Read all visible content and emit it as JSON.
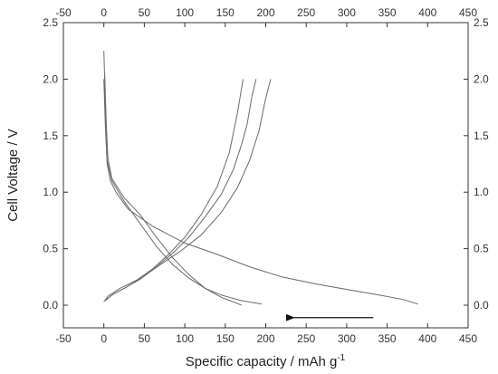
{
  "chart_data": {
    "type": "line",
    "xlabel": "Specific capacity / mAh g",
    "xlabel_superscript": "-1",
    "ylabel": "Cell Voltage / V",
    "xlim": [
      -50,
      450
    ],
    "ylim": [
      -0.2,
      2.5
    ],
    "x_ticks": [
      -50,
      0,
      50,
      100,
      150,
      200,
      250,
      300,
      350,
      400,
      450
    ],
    "y_ticks": [
      0.0,
      0.5,
      1.0,
      1.5,
      2.0,
      2.5
    ],
    "grid": false,
    "legend": "none",
    "series": [
      {
        "values": [
          [
            0,
            2.25
          ],
          [
            1,
            2.0
          ],
          [
            2,
            1.6
          ],
          [
            4,
            1.25
          ],
          [
            8,
            1.1
          ],
          [
            15,
            1.0
          ],
          [
            30,
            0.85
          ],
          [
            60,
            0.7
          ],
          [
            100,
            0.55
          ],
          [
            140,
            0.45
          ],
          [
            180,
            0.34
          ],
          [
            220,
            0.25
          ],
          [
            260,
            0.19
          ],
          [
            300,
            0.14
          ],
          [
            340,
            0.09
          ],
          [
            370,
            0.05
          ],
          [
            388,
            0.01
          ]
        ]
      },
      {
        "values": [
          [
            0,
            0.03
          ],
          [
            5,
            0.08
          ],
          [
            20,
            0.15
          ],
          [
            40,
            0.22
          ],
          [
            60,
            0.32
          ],
          [
            80,
            0.45
          ],
          [
            100,
            0.6
          ],
          [
            120,
            0.8
          ],
          [
            140,
            1.05
          ],
          [
            155,
            1.35
          ],
          [
            165,
            1.7
          ],
          [
            172,
            2.0
          ]
        ]
      },
      {
        "values": [
          [
            2,
            0.04
          ],
          [
            10,
            0.09
          ],
          [
            25,
            0.15
          ],
          [
            45,
            0.23
          ],
          [
            65,
            0.34
          ],
          [
            85,
            0.46
          ],
          [
            105,
            0.6
          ],
          [
            125,
            0.78
          ],
          [
            145,
            0.98
          ],
          [
            160,
            1.2
          ],
          [
            170,
            1.42
          ],
          [
            177,
            1.6
          ],
          [
            183,
            1.85
          ],
          [
            188,
            2.0
          ]
        ]
      },
      {
        "values": [
          [
            3,
            0.05
          ],
          [
            12,
            0.1
          ],
          [
            28,
            0.16
          ],
          [
            48,
            0.25
          ],
          [
            70,
            0.36
          ],
          [
            95,
            0.48
          ],
          [
            120,
            0.62
          ],
          [
            145,
            0.82
          ],
          [
            165,
            1.04
          ],
          [
            180,
            1.28
          ],
          [
            192,
            1.55
          ],
          [
            199,
            1.8
          ],
          [
            206,
            2.0
          ]
        ]
      },
      {
        "values": [
          [
            1,
            2.05
          ],
          [
            3,
            1.6
          ],
          [
            5,
            1.3
          ],
          [
            10,
            1.12
          ],
          [
            25,
            0.95
          ],
          [
            45,
            0.8
          ],
          [
            65,
            0.6
          ],
          [
            85,
            0.42
          ],
          [
            105,
            0.27
          ],
          [
            125,
            0.15
          ],
          [
            145,
            0.07
          ],
          [
            160,
            0.03
          ],
          [
            170,
            0.0
          ]
        ]
      },
      {
        "values": [
          [
            0,
            2.0
          ],
          [
            2,
            1.55
          ],
          [
            4,
            1.28
          ],
          [
            10,
            1.1
          ],
          [
            25,
            0.92
          ],
          [
            45,
            0.72
          ],
          [
            65,
            0.52
          ],
          [
            85,
            0.36
          ],
          [
            105,
            0.24
          ],
          [
            125,
            0.15
          ],
          [
            145,
            0.09
          ],
          [
            170,
            0.04
          ],
          [
            195,
            0.01
          ]
        ]
      }
    ],
    "annotations": [
      {
        "type": "arrow",
        "from": [
          333,
          -0.11
        ],
        "to": [
          235,
          -0.11
        ],
        "direction": "left"
      }
    ],
    "colors": {
      "curve": "#6a6a6a",
      "axis": "#333333",
      "arrow": "#111111"
    }
  }
}
